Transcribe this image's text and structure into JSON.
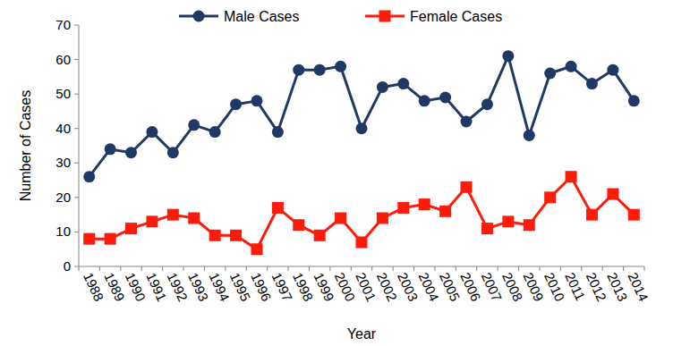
{
  "chart_data": {
    "type": "line",
    "x_label": "Year",
    "y_label": "Number of Cases",
    "categories": [
      "1988",
      "1989",
      "1990",
      "1991",
      "1992",
      "1993",
      "1994",
      "1995",
      "1996",
      "1997",
      "1998",
      "1999",
      "2000",
      "2001",
      "2002",
      "2003",
      "2004",
      "2005",
      "2006",
      "2007",
      "2008",
      "2009",
      "2010",
      "2011",
      "2012",
      "2013",
      "2014"
    ],
    "series": [
      {
        "name": "Male Cases",
        "color": "#1f3864",
        "marker": "circle",
        "values": [
          26,
          34,
          33,
          39,
          33,
          41,
          39,
          47,
          48,
          39,
          57,
          57,
          58,
          40,
          52,
          53,
          48,
          49,
          42,
          47,
          61,
          38,
          56,
          58,
          53,
          57,
          48
        ]
      },
      {
        "name": "Female Cases",
        "color": "#ff1a0a",
        "marker": "square",
        "values": [
          8,
          8,
          11,
          13,
          15,
          14,
          9,
          9,
          5,
          17,
          12,
          9,
          14,
          7,
          14,
          17,
          18,
          16,
          23,
          11,
          13,
          12,
          20,
          26,
          15,
          21,
          15
        ]
      }
    ],
    "ylim": [
      0,
      70
    ],
    "yticks": [
      0,
      10,
      20,
      30,
      40,
      50,
      60,
      70
    ],
    "grid": false,
    "legend": "top"
  }
}
